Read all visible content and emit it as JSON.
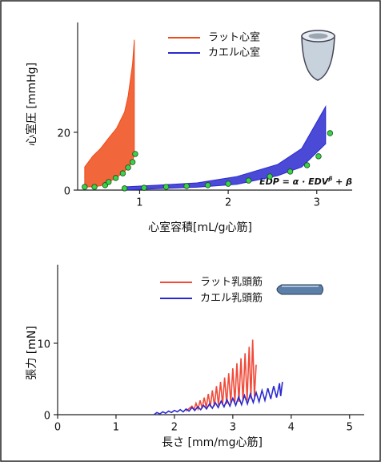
{
  "chart_data": [
    {
      "type": "band",
      "xlabel": "心室容積[mL/g心筋]",
      "ylabel": "心室圧 [mmHg]",
      "annotation": {
        "main": "EDP = α · EDV",
        "sup": "β",
        "tail": " + β"
      },
      "xlim": [
        0.3,
        3.4
      ],
      "ylim": [
        0,
        58
      ],
      "xticks": [
        1,
        2,
        3
      ],
      "yticks": [
        0,
        20
      ],
      "series": [
        {
          "name": "ラット心室",
          "color": "#f04b1a",
          "x": [
            0.38,
            0.47,
            0.56,
            0.65,
            0.74,
            0.83,
            0.87,
            0.92,
            0.94
          ],
          "lower": [
            1.1,
            1.1,
            1.5,
            2.8,
            4.3,
            6.5,
            7.8,
            9.7,
            12.5
          ],
          "upper": [
            8,
            11.7,
            14.4,
            18,
            21.4,
            27,
            32.5,
            43.6,
            52
          ]
        },
        {
          "name": "カエル心室",
          "color": "#2a2ad0",
          "x": [
            0.83,
            1.2,
            1.65,
            2.1,
            2.56,
            2.83,
            3.1
          ],
          "lower": [
            0,
            0.5,
            1,
            2,
            5,
            8,
            16
          ],
          "upper": [
            1.1,
            1.7,
            2.5,
            4.7,
            8.9,
            14.4,
            28.9
          ]
        }
      ],
      "points": [
        {
          "color": "#39d24a",
          "x": [
            0.38,
            0.49,
            0.61,
            0.65,
            0.73,
            0.81,
            0.87,
            0.92,
            0.95
          ],
          "values": [
            1.1,
            1.1,
            1.7,
            2.8,
            4.2,
            5.8,
            7.8,
            9.7,
            12.5
          ]
        },
        {
          "color": "#39d24a",
          "x": [
            0.83,
            1.05,
            1.3,
            1.53,
            1.77,
            2.0,
            2.23,
            2.47,
            2.7,
            2.89,
            3.02,
            3.15
          ],
          "values": [
            0.6,
            0.8,
            1.1,
            1.4,
            1.7,
            2.2,
            3.3,
            4.7,
            6.4,
            8.6,
            11.7,
            19.7
          ]
        }
      ]
    },
    {
      "type": "line",
      "xlabel": "長さ [mm/mg心筋]",
      "ylabel": "張力 [mN]",
      "xlim": [
        0,
        5.25
      ],
      "ylim": [
        0,
        21
      ],
      "xticks": [
        0,
        1,
        2,
        3,
        4,
        5
      ],
      "yticks": [
        0,
        10
      ],
      "series": [
        {
          "name": "ラット乳頭筋",
          "color": "#f04a3a",
          "x": [
            2.2,
            2.3,
            2.335,
            2.37,
            2.405,
            2.44,
            2.475,
            2.51,
            2.545,
            2.58,
            2.615,
            2.65,
            2.685,
            2.72,
            2.755,
            2.79,
            2.825,
            2.86,
            2.895,
            2.93,
            2.965,
            3.0,
            3.035,
            3.07,
            3.105,
            3.14,
            3.175,
            3.21,
            3.245,
            3.28,
            3.31,
            3.34,
            3.37,
            3.4
          ],
          "values": [
            0.5,
            1.2,
            0.7,
            1.6,
            0.8,
            2.0,
            0.9,
            2.4,
            1.0,
            2.9,
            1.1,
            3.4,
            1.2,
            4.0,
            1.3,
            4.6,
            1.4,
            5.2,
            1.5,
            5.8,
            1.6,
            6.5,
            1.7,
            7.2,
            1.8,
            7.9,
            1.9,
            8.6,
            2.0,
            9.5,
            2.2,
            10.5,
            2.5,
            7
          ]
        },
        {
          "name": "カエル乳頭筋",
          "color": "#2a2ad0",
          "x": [
            1.65,
            1.7,
            1.75,
            1.8,
            1.85,
            1.9,
            1.95,
            2.0,
            2.05,
            2.1,
            2.15,
            2.2,
            2.25,
            2.3,
            2.35,
            2.4,
            2.45,
            2.5,
            2.55,
            2.6,
            2.65,
            2.7,
            2.75,
            2.8,
            2.85,
            2.9,
            2.95,
            3.0,
            3.05,
            3.1,
            3.15,
            3.2,
            3.25,
            3.3,
            3.35,
            3.4,
            3.45,
            3.5,
            3.55,
            3.6,
            3.65,
            3.7,
            3.75,
            3.8,
            3.82,
            3.85
          ],
          "values": [
            0,
            0.3,
            0.1,
            0.4,
            0.2,
            0.5,
            0.3,
            0.6,
            0.4,
            0.7,
            0.4,
            0.8,
            0.5,
            1.0,
            0.6,
            1.1,
            0.7,
            1.3,
            0.8,
            1.5,
            0.9,
            1.7,
            1.0,
            1.9,
            1.1,
            2.1,
            1.2,
            2.3,
            1.3,
            2.5,
            1.4,
            2.7,
            1.5,
            2.9,
            1.7,
            3.1,
            1.8,
            3.4,
            2.0,
            3.7,
            2.2,
            4.0,
            2.4,
            4.4,
            2.6,
            4.6
          ]
        }
      ]
    }
  ]
}
